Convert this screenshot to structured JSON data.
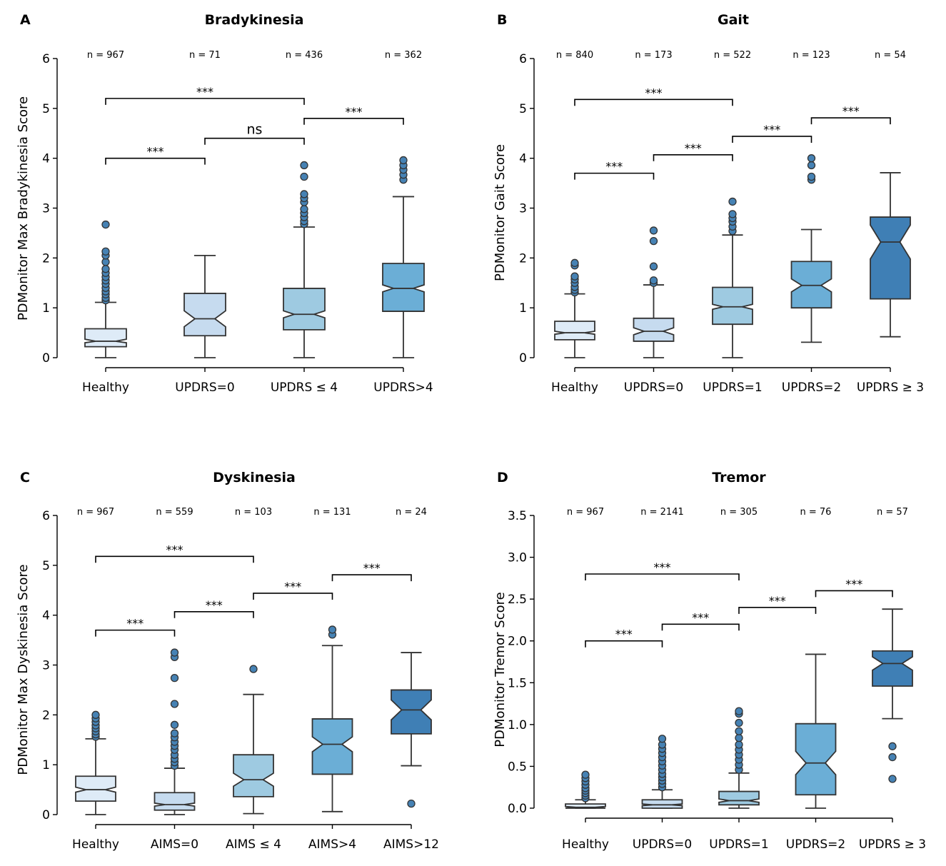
{
  "figure": {
    "colors": [
      "#deebf7",
      "#c6dbef",
      "#9ecae1",
      "#6baed6",
      "#3f7fb5"
    ],
    "flier_color": "#4682b4"
  },
  "chart_data": [
    {
      "panel_label": "A",
      "type": "box",
      "title": "Bradykinesia",
      "ylabel": "PDMonitor Max Bradykinesia Score",
      "ylim": [
        0,
        6
      ],
      "yticks": [
        "0",
        "1",
        "2",
        "3",
        "4",
        "5",
        "6"
      ],
      "categories": [
        "Healthy",
        "UPDRS=0",
        "UPDRS ≤ 4",
        "UPDRS>4"
      ],
      "n_labels": [
        "n = 967",
        "n = 71",
        "n = 436",
        "n = 362"
      ],
      "boxes": [
        {
          "q1": 0.22,
          "median": 0.33,
          "q3": 0.58,
          "notch_low": 0.3,
          "notch_high": 0.37,
          "whisker_low": 0.0,
          "whisker_high": 1.11,
          "fliers": [
            1.15,
            1.2,
            1.27,
            1.33,
            1.4,
            1.48,
            1.55,
            1.62,
            1.7,
            1.78,
            1.92,
            2.05,
            2.13,
            2.67
          ]
        },
        {
          "q1": 0.44,
          "median": 0.78,
          "q3": 1.29,
          "notch_low": 0.62,
          "notch_high": 0.94,
          "whisker_low": 0.0,
          "whisker_high": 2.05,
          "fliers": []
        },
        {
          "q1": 0.56,
          "median": 0.87,
          "q3": 1.39,
          "notch_low": 0.8,
          "notch_high": 0.94,
          "whisker_low": 0.0,
          "whisker_high": 2.62,
          "fliers": [
            2.68,
            2.74,
            2.82,
            2.9,
            2.98,
            3.12,
            3.2,
            3.28,
            3.63,
            3.86
          ]
        },
        {
          "q1": 0.93,
          "median": 1.39,
          "q3": 1.89,
          "notch_low": 1.32,
          "notch_high": 1.46,
          "whisker_low": 0.0,
          "whisker_high": 3.23,
          "fliers": [
            3.57,
            3.67,
            3.77,
            3.86,
            3.96
          ]
        }
      ],
      "brackets": [
        {
          "from": 0,
          "to": 1,
          "y": 4.0,
          "label": "***"
        },
        {
          "from": 1,
          "to": 2,
          "y": 4.4,
          "label": "ns"
        },
        {
          "from": 0,
          "to": 2,
          "y": 5.2,
          "label": "***"
        },
        {
          "from": 2,
          "to": 3,
          "y": 4.8,
          "label": "***"
        }
      ]
    },
    {
      "panel_label": "B",
      "type": "box",
      "title": "Gait",
      "ylabel": "PDMonitor Gait Score",
      "ylim": [
        0,
        6
      ],
      "yticks": [
        "0",
        "1",
        "2",
        "3",
        "4",
        "5",
        "6"
      ],
      "categories": [
        "Healthy",
        "UPDRS=0",
        "UPDRS=1",
        "UPDRS=2",
        "UPDRS ≥  3"
      ],
      "n_labels": [
        "n = 840",
        "n = 173",
        "n = 522",
        "n = 123",
        "n = 54"
      ],
      "boxes": [
        {
          "q1": 0.36,
          "median": 0.5,
          "q3": 0.73,
          "notch_low": 0.47,
          "notch_high": 0.53,
          "whisker_low": 0.0,
          "whisker_high": 1.28,
          "fliers": [
            1.31,
            1.36,
            1.42,
            1.5,
            1.57,
            1.63,
            1.85,
            1.9
          ]
        },
        {
          "q1": 0.33,
          "median": 0.53,
          "q3": 0.79,
          "notch_low": 0.46,
          "notch_high": 0.6,
          "whisker_low": 0.0,
          "whisker_high": 1.46,
          "fliers": [
            1.5,
            1.55,
            1.83,
            2.34,
            2.55
          ]
        },
        {
          "q1": 0.67,
          "median": 1.02,
          "q3": 1.41,
          "notch_low": 0.97,
          "notch_high": 1.07,
          "whisker_low": 0.0,
          "whisker_high": 2.46,
          "fliers": [
            2.54,
            2.63,
            2.73,
            2.8,
            2.88,
            3.13
          ]
        },
        {
          "q1": 1.0,
          "median": 1.45,
          "q3": 1.93,
          "notch_low": 1.32,
          "notch_high": 1.58,
          "whisker_low": 0.31,
          "whisker_high": 2.57,
          "fliers": [
            3.57,
            3.63,
            3.86,
            4.0
          ]
        },
        {
          "q1": 1.18,
          "median": 2.32,
          "q3": 2.82,
          "notch_low": 1.98,
          "notch_high": 2.66,
          "whisker_low": 0.42,
          "whisker_high": 3.71,
          "fliers": []
        }
      ],
      "brackets": [
        {
          "from": 0,
          "to": 1,
          "y": 3.7,
          "label": "***"
        },
        {
          "from": 1,
          "to": 2,
          "y": 4.07,
          "label": "***"
        },
        {
          "from": 0,
          "to": 2,
          "y": 5.18,
          "label": "***"
        },
        {
          "from": 2,
          "to": 3,
          "y": 4.44,
          "label": "***"
        },
        {
          "from": 3,
          "to": 4,
          "y": 4.81,
          "label": "***"
        }
      ]
    },
    {
      "panel_label": "C",
      "type": "box",
      "title": "Dyskinesia",
      "ylabel": "PDMonitor Max Dyskinesia Score",
      "ylim": [
        0,
        6
      ],
      "yticks": [
        "0",
        "1",
        "2",
        "3",
        "4",
        "5",
        "6"
      ],
      "categories": [
        "Healthy",
        "AIMS=0",
        "AIMS ≤ 4",
        "AIMS>4",
        "AIMS>12"
      ],
      "n_labels": [
        "n = 967",
        "n = 559",
        "n = 103",
        "n = 131",
        "n = 24"
      ],
      "boxes": [
        {
          "q1": 0.27,
          "median": 0.5,
          "q3": 0.77,
          "notch_low": 0.45,
          "notch_high": 0.55,
          "whisker_low": 0.0,
          "whisker_high": 1.52,
          "fliers": [
            1.56,
            1.61,
            1.67,
            1.73,
            1.79,
            1.86,
            1.93,
            2.0
          ]
        },
        {
          "q1": 0.09,
          "median": 0.2,
          "q3": 0.44,
          "notch_low": 0.17,
          "notch_high": 0.23,
          "whisker_low": 0.0,
          "whisker_high": 0.93,
          "fliers": [
            0.98,
            1.05,
            1.12,
            1.2,
            1.3,
            1.38,
            1.46,
            1.55,
            1.63,
            1.8,
            2.22,
            2.74,
            3.16,
            3.25
          ]
        },
        {
          "q1": 0.36,
          "median": 0.7,
          "q3": 1.2,
          "notch_low": 0.57,
          "notch_high": 0.83,
          "whisker_low": 0.02,
          "whisker_high": 2.41,
          "fliers": [
            2.92
          ]
        },
        {
          "q1": 0.81,
          "median": 1.41,
          "q3": 1.92,
          "notch_low": 1.26,
          "notch_high": 1.56,
          "whisker_low": 0.06,
          "whisker_high": 3.39,
          "fliers": [
            3.61,
            3.71
          ]
        },
        {
          "q1": 1.62,
          "median": 2.1,
          "q3": 2.5,
          "notch_low": 1.9,
          "notch_high": 2.3,
          "whisker_low": 0.98,
          "whisker_high": 3.25,
          "fliers": [
            0.22
          ]
        }
      ],
      "brackets": [
        {
          "from": 0,
          "to": 1,
          "y": 3.7,
          "label": "***"
        },
        {
          "from": 1,
          "to": 2,
          "y": 4.07,
          "label": "***"
        },
        {
          "from": 0,
          "to": 2,
          "y": 5.18,
          "label": "***"
        },
        {
          "from": 2,
          "to": 3,
          "y": 4.44,
          "label": "***"
        },
        {
          "from": 3,
          "to": 4,
          "y": 4.81,
          "label": "***"
        }
      ]
    },
    {
      "panel_label": "D",
      "type": "box",
      "title": "Tremor",
      "ylabel": "PDMonitor Tremor Score",
      "ylim": [
        0,
        3.5
      ],
      "yticks": [
        "0.0",
        "0.5",
        "1.0",
        "1.5",
        "2.0",
        "2.5",
        "3.0",
        "3.5"
      ],
      "categories": [
        "Healthy",
        "UPDRS=0",
        "UPDRS=1",
        "UPDRS=2",
        "UPDRS ≥  3"
      ],
      "n_labels": [
        "n = 967",
        "n = 2141",
        "n = 305",
        "n = 76",
        "n = 57"
      ],
      "boxes": [
        {
          "q1": 0.0,
          "median": 0.01,
          "q3": 0.05,
          "notch_low": 0.0,
          "notch_high": 0.02,
          "whisker_low": 0.0,
          "whisker_high": 0.1,
          "fliers": [
            0.12,
            0.15,
            0.18,
            0.21,
            0.24,
            0.28,
            0.32,
            0.36,
            0.4
          ]
        },
        {
          "q1": 0.0,
          "median": 0.04,
          "q3": 0.1,
          "notch_low": 0.03,
          "notch_high": 0.05,
          "whisker_low": 0.0,
          "whisker_high": 0.22,
          "fliers": [
            0.25,
            0.29,
            0.33,
            0.37,
            0.41,
            0.46,
            0.51,
            0.56,
            0.61,
            0.66,
            0.71,
            0.76,
            0.83
          ]
        },
        {
          "q1": 0.04,
          "median": 0.09,
          "q3": 0.2,
          "notch_low": 0.07,
          "notch_high": 0.11,
          "whisker_low": 0.0,
          "whisker_high": 0.42,
          "fliers": [
            0.46,
            0.52,
            0.58,
            0.64,
            0.7,
            0.76,
            0.84,
            0.92,
            1.02,
            1.13,
            1.16
          ]
        },
        {
          "q1": 0.16,
          "median": 0.54,
          "q3": 1.01,
          "notch_low": 0.4,
          "notch_high": 0.68,
          "whisker_low": 0.0,
          "whisker_high": 1.84,
          "fliers": []
        },
        {
          "q1": 1.46,
          "median": 1.73,
          "q3": 1.88,
          "notch_low": 1.65,
          "notch_high": 1.81,
          "whisker_low": 1.07,
          "whisker_high": 2.38,
          "fliers": [
            0.35,
            0.61,
            0.74
          ]
        }
      ],
      "brackets": [
        {
          "from": 0,
          "to": 1,
          "y": 2.0,
          "label": "***"
        },
        {
          "from": 1,
          "to": 2,
          "y": 2.2,
          "label": "***"
        },
        {
          "from": 0,
          "to": 2,
          "y": 2.8,
          "label": "***"
        },
        {
          "from": 2,
          "to": 3,
          "y": 2.4,
          "label": "***"
        },
        {
          "from": 3,
          "to": 4,
          "y": 2.6,
          "label": "***"
        }
      ]
    }
  ]
}
